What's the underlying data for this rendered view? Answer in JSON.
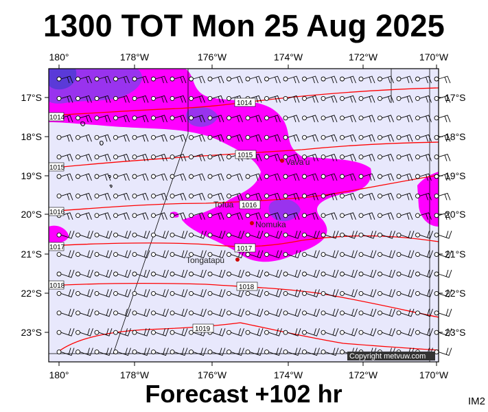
{
  "header": {
    "title": "1300 TOT Mon 25 Aug 2025"
  },
  "footer": {
    "forecast_label": "Forecast +102 hr",
    "image_code": "IM2"
  },
  "map": {
    "copyright": "Copyright metvuw.com",
    "longitude_labels": [
      "180°",
      "178°W",
      "176°W",
      "174°W",
      "172°W",
      "170°W"
    ],
    "latitude_labels": [
      "17°S",
      "18°S",
      "19°S",
      "20°S",
      "21°S",
      "22°S",
      "23°S"
    ],
    "places": [
      {
        "name": "Vava'u"
      },
      {
        "name": "Tofua"
      },
      {
        "name": "Nomuka"
      },
      {
        "name": "Tongatapu"
      }
    ],
    "isobar_labels": [
      "1014",
      "1015",
      "1016",
      "1017",
      "1018",
      "1019",
      "1014",
      "1015",
      "1016",
      "1017",
      "1018"
    ],
    "colors": {
      "background": "#e8e8fc",
      "rain_light": "#ff00ff",
      "rain_heavy": "#9933ee",
      "rain_core": "#5a3ad8",
      "isobar": "#ff0000",
      "place_dot": "#cc0000"
    }
  }
}
